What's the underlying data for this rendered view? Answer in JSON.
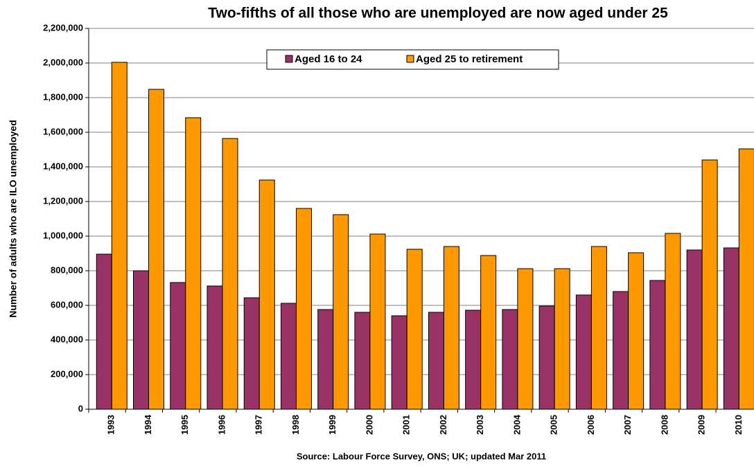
{
  "chart_data": {
    "type": "bar",
    "title": "Two-fifths of all those who are unemployed are now aged under 25",
    "y_label": "Number of adults who are ILO unemployed",
    "source": "Source: Labour Force Survey, ONS; UK; updated Mar 2011",
    "categories": [
      "1993",
      "1994",
      "1995",
      "1996",
      "1997",
      "1998",
      "1999",
      "2000",
      "2001",
      "2002",
      "2003",
      "2004",
      "2005",
      "2006",
      "2007",
      "2008",
      "2009",
      "2010"
    ],
    "series": [
      {
        "name": "Aged 16 to 24",
        "color": "#993366",
        "values": [
          896000,
          800000,
          732000,
          712000,
          644000,
          612000,
          576000,
          560000,
          540000,
          560000,
          572000,
          576000,
          596000,
          660000,
          680000,
          744000,
          920000,
          932000
        ]
      },
      {
        "name": "Aged 25 to retirement",
        "color": "#ff9900",
        "values": [
          2004000,
          1848000,
          1684000,
          1564000,
          1324000,
          1160000,
          1124000,
          1012000,
          924000,
          940000,
          888000,
          812000,
          812000,
          940000,
          904000,
          1016000,
          1440000,
          1504000
        ]
      }
    ],
    "ylim": [
      0,
      2200000
    ],
    "yticks": [
      0,
      {
        "value": 200000,
        "label": "200,000"
      },
      {
        "value": 400000,
        "label": "400,000"
      },
      {
        "value": 600000,
        "label": "600,000"
      },
      {
        "value": 800000,
        "label": "800,000"
      },
      {
        "value": 1000000,
        "label": "1,000,000"
      },
      {
        "value": 1200000,
        "label": "1,200,000"
      },
      {
        "value": 1400000,
        "label": "1,400,000"
      },
      {
        "value": 1600000,
        "label": "1,600,000"
      },
      {
        "value": 1800000,
        "label": "1,800,000"
      },
      {
        "value": 2000000,
        "label": "2,000,000"
      },
      {
        "value": 2200000,
        "label": "2,200,000"
      }
    ],
    "grid": true,
    "legend": "top"
  }
}
